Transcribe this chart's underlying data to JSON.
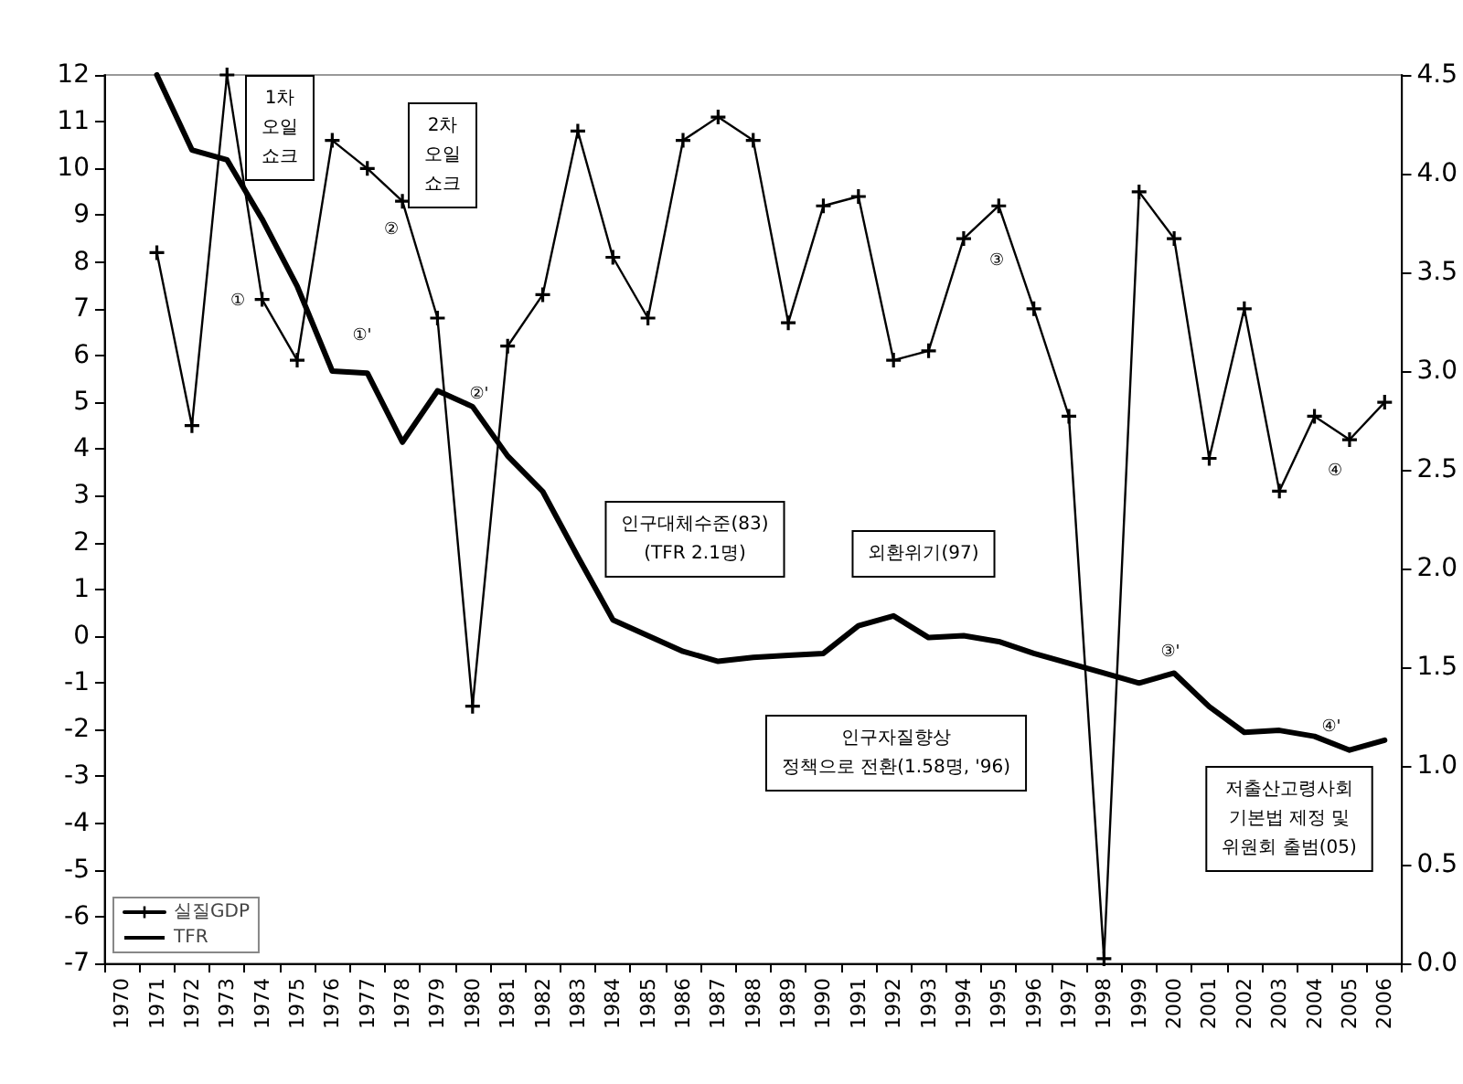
{
  "chart_data": {
    "type": "line",
    "categories": [
      "1970",
      "1971",
      "1972",
      "1973",
      "1974",
      "1975",
      "1976",
      "1977",
      "1978",
      "1979",
      "1980",
      "1981",
      "1982",
      "1983",
      "1984",
      "1985",
      "1986",
      "1987",
      "1988",
      "1989",
      "1990",
      "1991",
      "1992",
      "1993",
      "1994",
      "1995",
      "1996",
      "1997",
      "1998",
      "1999",
      "2000",
      "2001",
      "2002",
      "2003",
      "2004",
      "2005",
      "2006"
    ],
    "series": [
      {
        "name": "실질GDP",
        "color": "#000000",
        "marker": "cross",
        "values": [
          null,
          8.2,
          4.5,
          12.0,
          7.2,
          5.9,
          10.6,
          10.0,
          9.3,
          6.8,
          -1.5,
          6.2,
          7.3,
          10.8,
          8.1,
          6.8,
          10.6,
          11.1,
          10.6,
          6.7,
          9.2,
          9.4,
          5.9,
          6.1,
          8.5,
          9.2,
          7.0,
          4.7,
          -6.9,
          9.5,
          8.5,
          3.8,
          7.0,
          3.1,
          4.7,
          4.2,
          5.0
        ]
      },
      {
        "name": "TFR",
        "color": "#000000",
        "axis": "y2",
        "marker": "none",
        "values": [
          null,
          4.5,
          4.12,
          4.07,
          3.77,
          3.43,
          3.0,
          2.99,
          2.64,
          2.9,
          2.82,
          2.57,
          2.39,
          2.06,
          1.74,
          1.66,
          1.58,
          1.53,
          1.55,
          1.56,
          1.57,
          1.71,
          1.76,
          1.65,
          1.66,
          1.63,
          1.57,
          1.52,
          1.47,
          1.42,
          1.47,
          1.3,
          1.17,
          1.18,
          1.15,
          1.08,
          1.13
        ]
      }
    ],
    "ylim": [
      -7,
      12
    ],
    "yticks": [
      -7,
      -6,
      -5,
      -4,
      -3,
      -2,
      -1,
      0,
      1,
      2,
      3,
      4,
      5,
      6,
      7,
      8,
      9,
      10,
      11,
      12
    ],
    "y2lim": [
      0,
      4.5
    ],
    "y2ticks": [
      {
        "value": 0,
        "label": "0.0"
      },
      {
        "value": 0.5,
        "label": "0.5"
      },
      {
        "value": 1,
        "label": "1.0"
      },
      {
        "value": 1.5,
        "label": "1.5"
      },
      {
        "value": 2,
        "label": "2.0"
      },
      {
        "value": 2.5,
        "label": "2.5"
      },
      {
        "value": 3,
        "label": "3.0"
      },
      {
        "value": 3.5,
        "label": "3.5"
      },
      {
        "value": 4,
        "label": "4.0"
      },
      {
        "value": 4.5,
        "label": "4.5"
      }
    ],
    "grid": false,
    "legend": "bottom left",
    "annotations": [
      "1차\n오일\n쇼크",
      "2차\n오일\n쇼크",
      "인구대체수준(83)\n(TFR 2.1명)",
      "외환위기(97)",
      "인구자질향상\n정책으로 전환(1.58명, '96)",
      "저출산고령사회\n기본법 제정 및\n위원회 출범(05)",
      "①",
      "①'",
      "②",
      "②'",
      "③",
      "③'",
      "④",
      "④'"
    ]
  }
}
